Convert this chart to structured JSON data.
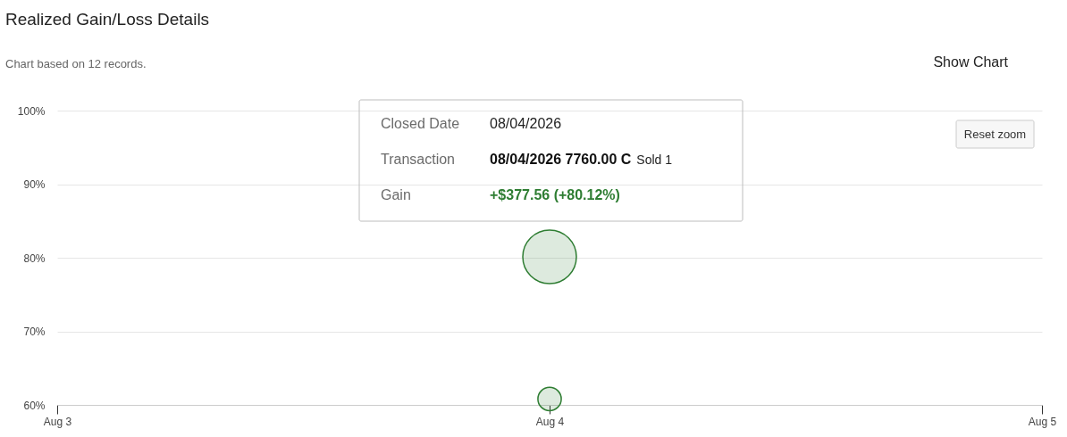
{
  "chart_data": {
    "type": "bubble",
    "title": "Realized Gain/Loss Details",
    "subtitle": "Chart based on 12 records.",
    "x": [
      "2026-08-04",
      "2026-08-04"
    ],
    "values": [
      80.12,
      60.8
    ],
    "sizes": [
      1,
      0.19
    ],
    "color": "#2e7d32",
    "xlim": [
      "2026-08-03",
      "2026-08-05"
    ],
    "xticks": [
      {
        "value": "2026-08-03",
        "label": "Aug 3"
      },
      {
        "value": "2026-08-04",
        "label": "Aug 4"
      },
      {
        "value": "2026-08-05",
        "label": "Aug 5"
      }
    ],
    "ylim": [
      60,
      100
    ],
    "yticks": [
      {
        "value": 60,
        "label": "60%"
      },
      {
        "value": 70,
        "label": "70%"
      },
      {
        "value": 80,
        "label": "80%"
      },
      {
        "value": 90,
        "label": "90%"
      },
      {
        "value": 100,
        "label": "100%"
      }
    ],
    "grid": "y",
    "marker": "circle",
    "annotations": [
      "Show Chart",
      "Reset zoom",
      "Closed Date",
      "08/04/2026",
      "Transaction",
      "08/04/2026 7760.00 C",
      "Sold 1",
      "Gain",
      "+$377.56 (+80.12%)"
    ]
  }
}
